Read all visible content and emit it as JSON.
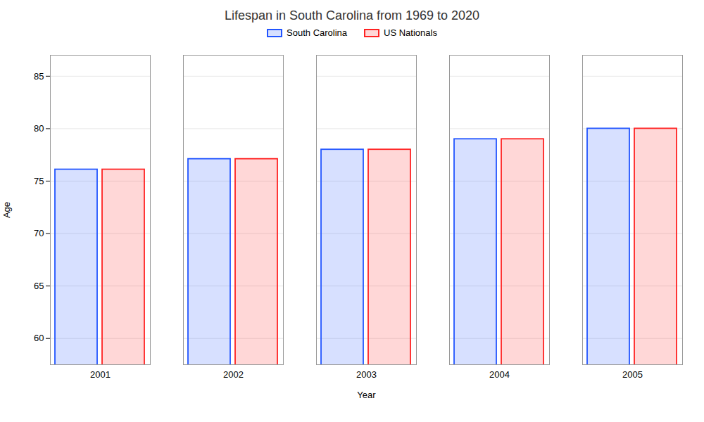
{
  "chart_data": {
    "type": "bar",
    "title": "Lifespan in South Carolina from 1969 to 2020",
    "xlabel": "Year",
    "ylabel": "Age",
    "categories": [
      "2001",
      "2002",
      "2003",
      "2004",
      "2005"
    ],
    "series": [
      {
        "name": "South Carolina",
        "color": "#2255ff",
        "values": [
          76.1,
          77.1,
          78.0,
          79.0,
          80.0
        ]
      },
      {
        "name": "US Nationals",
        "color": "#ff2222",
        "values": [
          76.1,
          77.1,
          78.0,
          79.0,
          80.0
        ]
      }
    ],
    "ylim": [
      57.5,
      87
    ],
    "yticks": [
      60,
      65,
      70,
      75,
      80,
      85
    ],
    "grid": true,
    "legend": "top"
  }
}
